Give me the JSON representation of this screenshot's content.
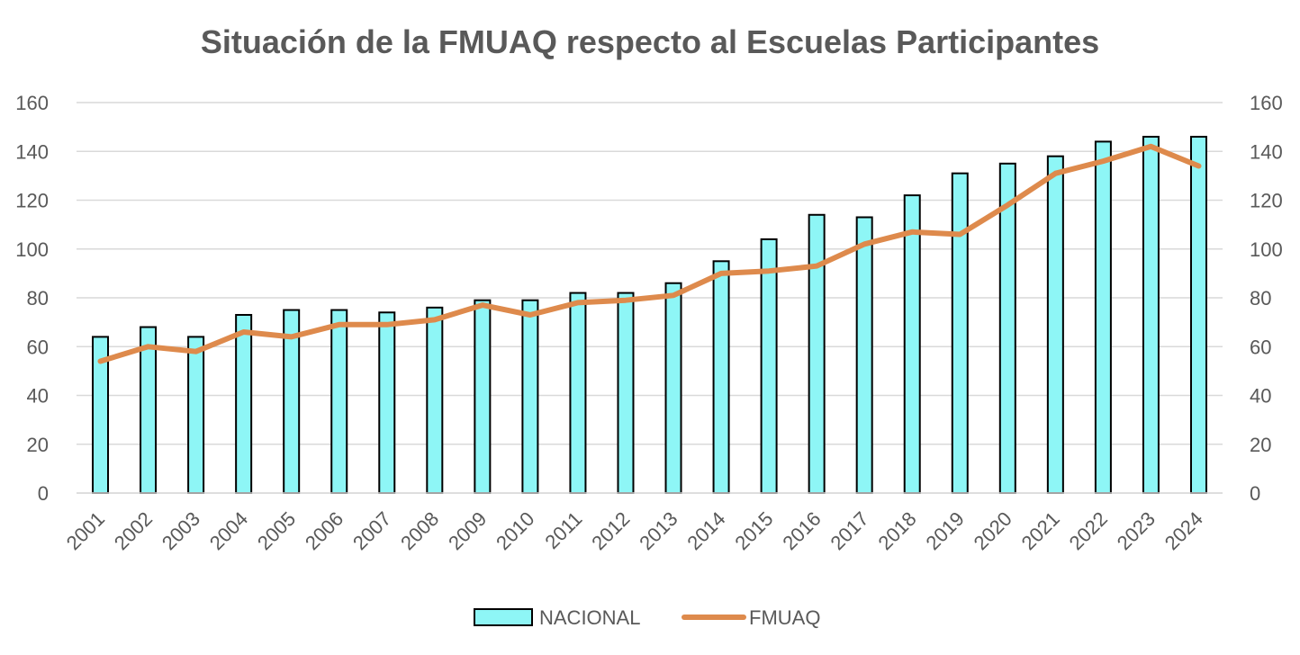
{
  "chart_data": {
    "type": "bar",
    "title": "Situación de la FMUAQ respecto al  Escuelas Participantes",
    "categories": [
      "2001",
      "2002",
      "2003",
      "2004",
      "2005",
      "2006",
      "2007",
      "2008",
      "2009",
      "2010",
      "2011",
      "2012",
      "2013",
      "2014",
      "2015",
      "2016",
      "2017",
      "2018",
      "2019",
      "2020",
      "2021",
      "2022",
      "2023",
      "2024"
    ],
    "series": [
      {
        "name": "NACIONAL",
        "kind": "bar",
        "color": "#8ef6f6",
        "values": [
          64,
          68,
          64,
          73,
          75,
          75,
          74,
          76,
          79,
          79,
          82,
          82,
          86,
          95,
          104,
          114,
          113,
          122,
          131,
          135,
          138,
          144,
          146,
          146
        ]
      },
      {
        "name": "FMUAQ",
        "kind": "line",
        "color": "#de8a4c",
        "values": [
          54,
          60,
          58,
          66,
          64,
          69,
          69,
          71,
          77,
          73,
          78,
          79,
          81,
          90,
          91,
          93,
          102,
          107,
          106,
          118,
          131,
          136,
          142,
          134
        ]
      }
    ],
    "ylim": [
      0,
      160
    ],
    "y_ticks": [
      0,
      20,
      40,
      60,
      80,
      100,
      120,
      140,
      160
    ],
    "secondary_ylim": [
      0,
      160
    ],
    "grid": true,
    "legend_position": "bottom"
  }
}
